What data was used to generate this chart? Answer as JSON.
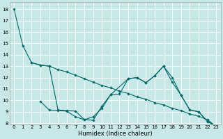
{
  "xlabel": "Humidex (Indice chaleur)",
  "bg_color": "#c8e8e8",
  "line_color": "#006868",
  "grid_color": "#ffffff",
  "ylim": [
    7.9,
    18.6
  ],
  "xlim": [
    -0.5,
    23.5
  ],
  "yticks": [
    8,
    9,
    10,
    11,
    12,
    13,
    14,
    15,
    16,
    17,
    18
  ],
  "xticks": [
    0,
    1,
    2,
    3,
    4,
    5,
    6,
    7,
    8,
    9,
    10,
    11,
    12,
    13,
    14,
    15,
    16,
    17,
    18,
    19,
    20,
    21,
    22,
    23
  ],
  "line1_x": [
    0,
    1,
    2,
    3,
    4,
    5,
    6,
    7,
    8,
    9,
    10,
    11,
    12,
    13,
    14,
    15,
    16,
    17,
    18,
    19,
    20,
    21,
    22,
    23
  ],
  "line1_y": [
    18.0,
    14.8,
    13.3,
    13.1,
    13.0,
    12.7,
    12.5,
    12.2,
    11.9,
    11.6,
    11.3,
    11.1,
    10.8,
    10.6,
    10.3,
    10.1,
    9.8,
    9.6,
    9.3,
    9.1,
    8.8,
    8.6,
    8.3,
    7.7
  ],
  "line2_x": [
    2,
    3,
    4,
    5,
    6,
    7,
    8,
    9,
    10,
    11,
    13,
    14,
    15,
    16,
    17,
    18,
    19,
    20,
    21,
    22,
    23
  ],
  "line2_y": [
    13.3,
    13.1,
    13.0,
    9.15,
    9.1,
    9.05,
    8.3,
    8.25,
    9.5,
    10.5,
    11.9,
    12.0,
    11.55,
    12.15,
    13.0,
    12.0,
    10.45,
    9.15,
    9.0,
    8.15,
    7.7
  ],
  "line3_x": [
    3,
    4,
    5,
    6,
    7,
    8,
    9,
    10,
    11,
    12,
    13,
    14,
    15,
    16,
    17,
    18,
    19,
    20,
    21,
    22,
    23
  ],
  "line3_y": [
    9.9,
    9.15,
    9.1,
    9.05,
    8.55,
    8.3,
    8.55,
    9.3,
    10.5,
    10.55,
    11.9,
    12.0,
    11.55,
    12.15,
    13.0,
    11.6,
    10.45,
    9.15,
    9.0,
    8.15,
    7.7
  ],
  "tick_fontsize": 5,
  "xlabel_fontsize": 6,
  "lw": 0.8,
  "ms": 1.8
}
